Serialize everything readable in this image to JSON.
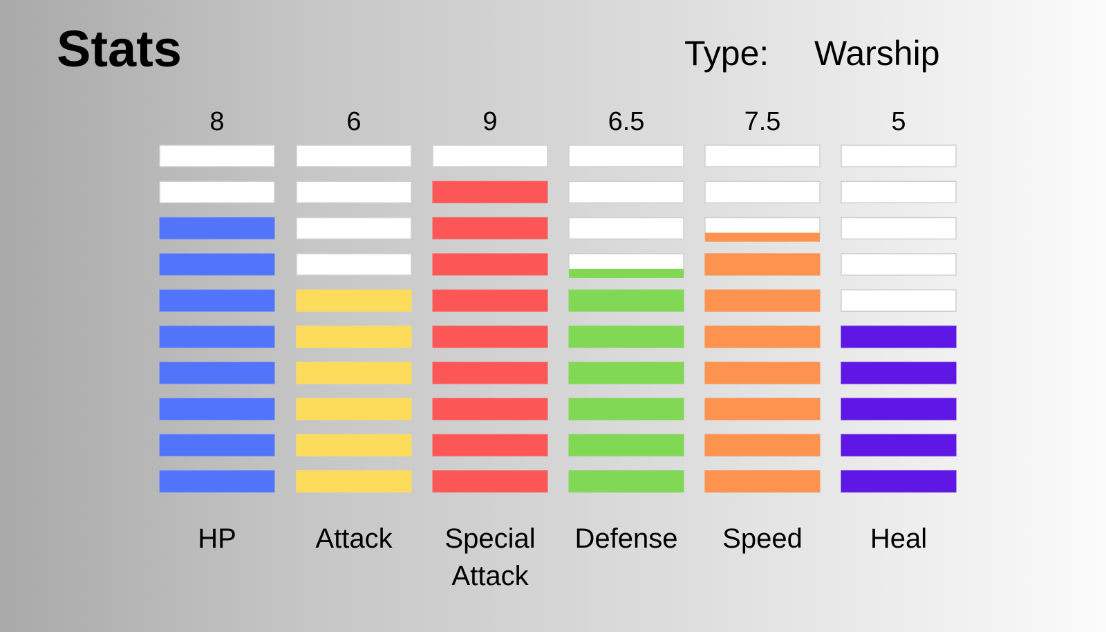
{
  "header": {
    "title": "Stats",
    "type_label": "Type:",
    "type_value": "Warship"
  },
  "chart_data": {
    "type": "bar",
    "max_segments": 10,
    "categories": [
      [
        "HP"
      ],
      [
        "Attack"
      ],
      [
        "Special",
        "Attack"
      ],
      [
        "Defense"
      ],
      [
        "Speed"
      ],
      [
        "Heal"
      ]
    ],
    "series": [
      {
        "values": [
          8,
          6,
          9,
          6.5,
          7.5,
          5
        ],
        "value_labels": [
          "8",
          "6",
          "9",
          "6.5",
          "7.5",
          "5"
        ],
        "colors": [
          "#5274fa",
          "#fddc5c",
          "#fd5656",
          "#80d855",
          "#fe934f",
          "#5f17e6"
        ]
      }
    ],
    "empty_color": "#ffffff"
  }
}
